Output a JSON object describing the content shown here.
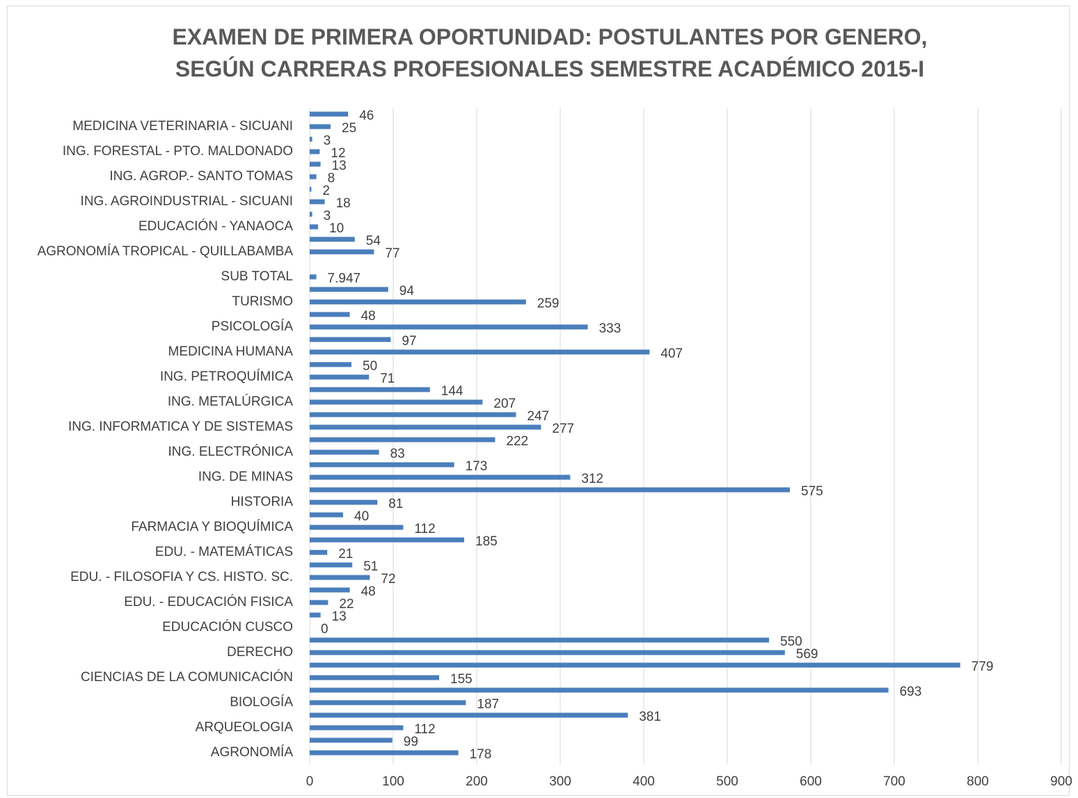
{
  "chart_data": {
    "type": "bar",
    "orientation": "horizontal",
    "title": "EXAMEN DE PRIMERA OPORTUNIDAD: POSTULANTES POR GENERO, SEGÚN CARRERAS PROFESIONALES SEMESTRE ACADÉMICO 2015-I",
    "categories": [
      "AGRONOMÍA",
      null,
      "ARQUEOLOGIA",
      null,
      "BIOLOGÍA",
      null,
      "CIENCIAS DE LA COMUNICACIÓN",
      null,
      "DERECHO",
      null,
      "EDUCACIÓN CUSCO",
      null,
      "EDU. - EDUCACIÓN FISICA",
      null,
      "EDU. - FILOSOFIA Y CS. HISTO. SC.",
      null,
      "EDU. - MATEMÁTICAS",
      null,
      "FARMACIA Y BIOQUÍMICA",
      null,
      "HISTORIA",
      null,
      "ING. DE MINAS",
      null,
      "ING. ELECTRÓNICA",
      null,
      "ING. INFORMATICA Y DE SISTEMAS",
      null,
      "ING. METALÚRGICA",
      null,
      "ING. PETROQUÍMICA",
      null,
      "MEDICINA HUMANA",
      null,
      "PSICOLOGÍA",
      null,
      "TURISMO",
      null,
      "SUB TOTAL",
      null,
      "AGRONOMÍA TROPICAL - QUILLABAMBA",
      null,
      "EDUCACIÓN - YANAOCA",
      null,
      "ING. AGROINDUSTRIAL - SICUANI",
      null,
      "ING. AGROP.- SANTO TOMAS",
      null,
      "ING. FORESTAL - PTO. MALDONADO",
      null,
      "MEDICINA VETERINARIA - SICUANI",
      null
    ],
    "values": [
      178,
      99,
      112,
      381,
      187,
      693,
      155,
      779,
      569,
      550,
      0,
      13,
      22,
      48,
      72,
      51,
      21,
      185,
      112,
      40,
      81,
      575,
      312,
      173,
      83,
      222,
      277,
      247,
      207,
      144,
      71,
      50,
      407,
      97,
      333,
      48,
      259,
      94,
      7.947,
      null,
      77,
      54,
      10,
      3,
      18,
      2,
      8,
      13,
      12,
      3,
      25,
      46
    ],
    "color": "#4a7ebb",
    "xlim": [
      0,
      900
    ],
    "xticks": [
      0,
      100,
      200,
      300,
      400,
      500,
      600,
      700,
      800,
      900
    ],
    "grid": true
  }
}
